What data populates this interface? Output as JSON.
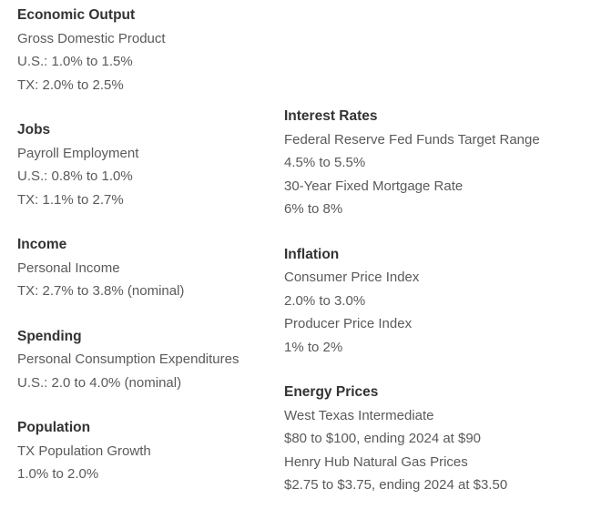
{
  "left_column": [
    {
      "heading": "Economic Output",
      "lines": [
        "Gross Domestic Product",
        "U.S.: 1.0% to 1.5%",
        "TX: 2.0% to 2.5%"
      ]
    },
    {
      "heading": "Jobs",
      "lines": [
        "Payroll Employment",
        "U.S.: 0.8% to 1.0%",
        "TX: 1.1% to 2.7%"
      ]
    },
    {
      "heading": "Income",
      "lines": [
        "Personal Income",
        "TX: 2.7% to 3.8% (nominal)"
      ]
    },
    {
      "heading": "Spending",
      "lines": [
        "Personal Consumption Expenditures",
        "U.S.: 2.0 to 4.0% (nominal)"
      ]
    },
    {
      "heading": "Population",
      "lines": [
        "TX Population Growth",
        "1.0% to 2.0%"
      ]
    }
  ],
  "right_column": [
    {
      "heading": "Interest Rates",
      "lines": [
        "Federal Reserve Fed Funds Target Range",
        "4.5% to 5.5%",
        "30-Year Fixed Mortgage Rate",
        "6% to 8%"
      ]
    },
    {
      "heading": "Inflation",
      "lines": [
        "Consumer Price Index",
        "2.0% to 3.0%",
        "Producer Price Index",
        "1% to 2%"
      ]
    },
    {
      "heading": "Energy Prices",
      "lines": [
        "West Texas Intermediate",
        "$80 to $100, ending 2024 at $90",
        "Henry Hub Natural Gas Prices",
        "$2.75 to $3.75, ending 2024 at $3.50"
      ]
    }
  ]
}
